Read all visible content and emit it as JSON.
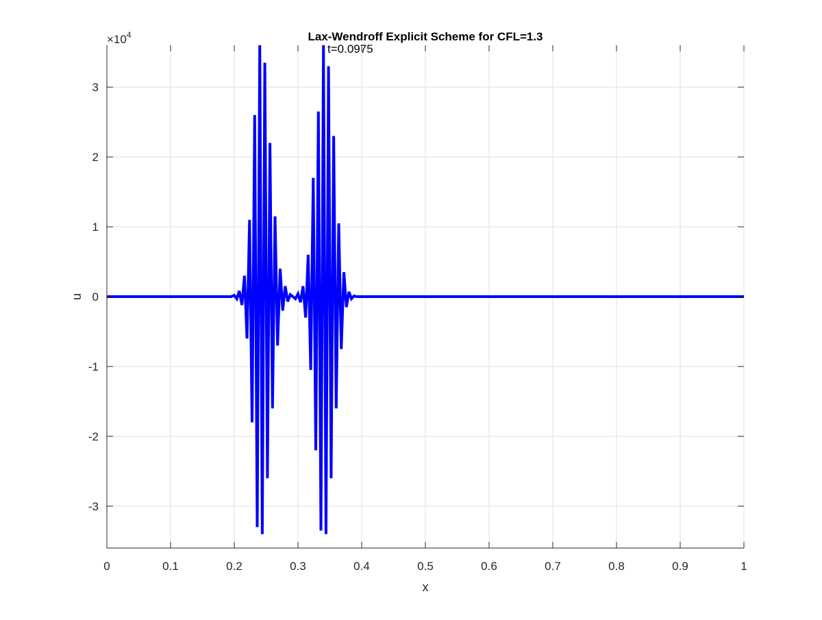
{
  "chart_data": {
    "type": "line",
    "title": "Lax-Wendroff Explicit Scheme for CFL=1.3",
    "annotation": "t=0.0975",
    "xlabel": "x",
    "ylabel": "u",
    "y_exponent_label": "×10",
    "y_exponent_power": "4",
    "xlim": [
      0,
      1
    ],
    "ylim": [
      -36000,
      36000
    ],
    "grid": true,
    "x_ticks": [
      0,
      0.1,
      0.2,
      0.3,
      0.4,
      0.5,
      0.6,
      0.7,
      0.8,
      0.9,
      1
    ],
    "x_tick_labels": [
      "0",
      "0.1",
      "0.2",
      "0.3",
      "0.4",
      "0.5",
      "0.6",
      "0.7",
      "0.8",
      "0.9",
      "1"
    ],
    "y_ticks": [
      -30000,
      -20000,
      -10000,
      0,
      10000,
      20000,
      30000
    ],
    "y_tick_labels": [
      "-3",
      "-2",
      "-1",
      "0",
      "1",
      "2",
      "3"
    ],
    "line_color": "#0000ff",
    "series": [
      {
        "x": [
          0,
          0.195,
          0.2,
          0.204,
          0.208,
          0.212,
          0.216,
          0.22,
          0.224,
          0.228,
          0.232,
          0.236,
          0.24,
          0.244,
          0.248,
          0.252,
          0.256,
          0.26,
          0.264,
          0.268,
          0.272,
          0.276,
          0.28,
          0.284,
          0.288,
          0.292,
          0.296,
          0.3,
          0.304,
          0.308,
          0.312,
          0.316,
          0.32,
          0.324,
          0.328,
          0.332,
          0.336,
          0.34,
          0.344,
          0.348,
          0.352,
          0.356,
          0.36,
          0.364,
          0.368,
          0.372,
          0.376,
          0.38,
          0.384,
          0.388,
          0.392,
          1
        ],
        "y": [
          0,
          0,
          200,
          -300,
          800,
          -1200,
          3000,
          -6000,
          11000,
          -18000,
          26000,
          -33000,
          36000,
          -34000,
          33500,
          -26000,
          22000,
          -16000,
          11500,
          -7000,
          4000,
          -2000,
          1500,
          -700,
          300,
          0,
          -300,
          400,
          -800,
          1500,
          -3000,
          6000,
          -10500,
          17000,
          -22000,
          26500,
          -33500,
          36000,
          -34000,
          33000,
          -26000,
          23000,
          -16000,
          10500,
          -7500,
          3500,
          -1500,
          700,
          -300,
          100,
          0,
          0
        ]
      }
    ]
  }
}
